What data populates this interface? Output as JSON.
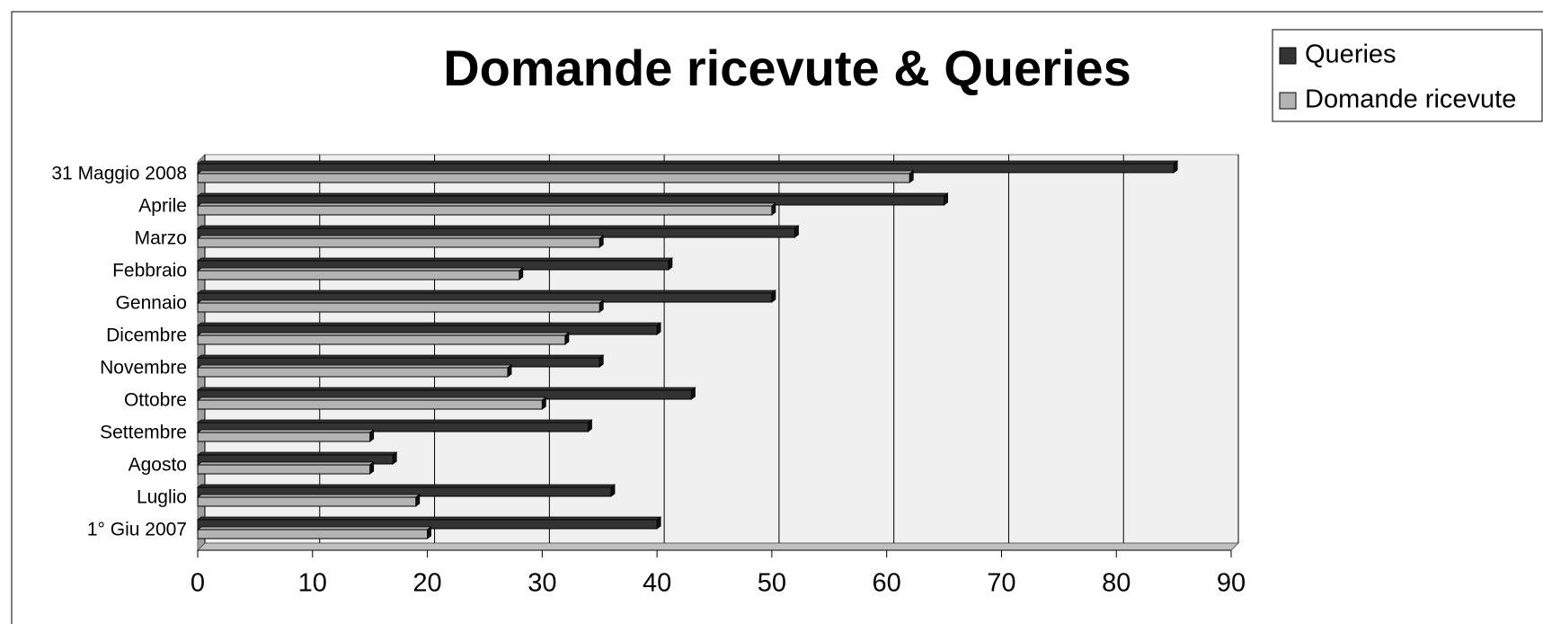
{
  "chart_data": {
    "type": "bar",
    "orientation": "horizontal",
    "title": "Domande ricevute & Queries",
    "categories": [
      "31 Maggio 2008",
      "Aprile",
      "Marzo",
      "Febbraio",
      "Gennaio",
      "Dicembre",
      "Novembre",
      "Ottobre",
      "Settembre",
      "Agosto",
      "Luglio",
      "1° Giu 2007"
    ],
    "series": [
      {
        "name": "Queries",
        "color": "#333333",
        "values": [
          85,
          65,
          52,
          41,
          50,
          40,
          35,
          43,
          34,
          17,
          36,
          40
        ]
      },
      {
        "name": "Domande ricevute",
        "color": "#b3b3b3",
        "values": [
          62,
          50,
          35,
          28,
          35,
          32,
          27,
          30,
          15,
          15,
          19,
          20
        ]
      }
    ],
    "xlim": [
      0,
      90
    ],
    "xticks": [
      0,
      10,
      20,
      30,
      40,
      50,
      60,
      70,
      80,
      90
    ],
    "grid": true,
    "legend": "top-right"
  }
}
